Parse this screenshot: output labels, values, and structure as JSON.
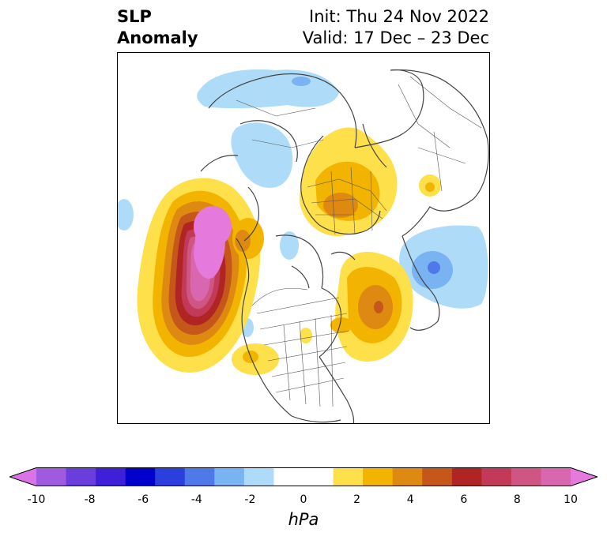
{
  "header": {
    "title_line1": "SLP",
    "title_line2": "Anomaly",
    "init_text": "Init: Thu 24 Nov 2022",
    "valid_text": "Valid: 17 Dec – 23 Dec"
  },
  "colorbar": {
    "unit": "hPa",
    "tick_labels": [
      "-10",
      "-8",
      "-6",
      "-4",
      "-2",
      "0",
      "2",
      "4",
      "6",
      "8",
      "10"
    ],
    "colors": [
      "#d973e6",
      "#a05ae0",
      "#6a3ddd",
      "#3f1fd8",
      "#0000cc",
      "#2a3fdd",
      "#4f78e8",
      "#79b3f2",
      "#aedcf8",
      "#ffffff",
      "#ffffff",
      "#fde04a",
      "#f3b400",
      "#de8a12",
      "#c6571a",
      "#b02424",
      "#c23a58",
      "#cf5583",
      "#d967b0",
      "#e679dc"
    ],
    "min": -10,
    "max": 10,
    "extend": "both"
  },
  "anomalies": [
    {
      "label": "strong positive anomaly over Gulf of Alaska",
      "sign": "positive",
      "peak_hPa": 10
    },
    {
      "label": "positive anomaly over Scandinavia",
      "sign": "positive",
      "peak_hPa": 5
    },
    {
      "label": "positive anomaly over North Atlantic",
      "sign": "positive",
      "peak_hPa": 5
    },
    {
      "label": "negative anomaly over Siberia",
      "sign": "negative",
      "peak_hPa": -4
    },
    {
      "label": "negative anomaly over Kamchatka",
      "sign": "negative",
      "peak_hPa": -3
    },
    {
      "label": "negative anomaly over central Asia",
      "sign": "negative",
      "peak_hPa": -2
    }
  ]
}
